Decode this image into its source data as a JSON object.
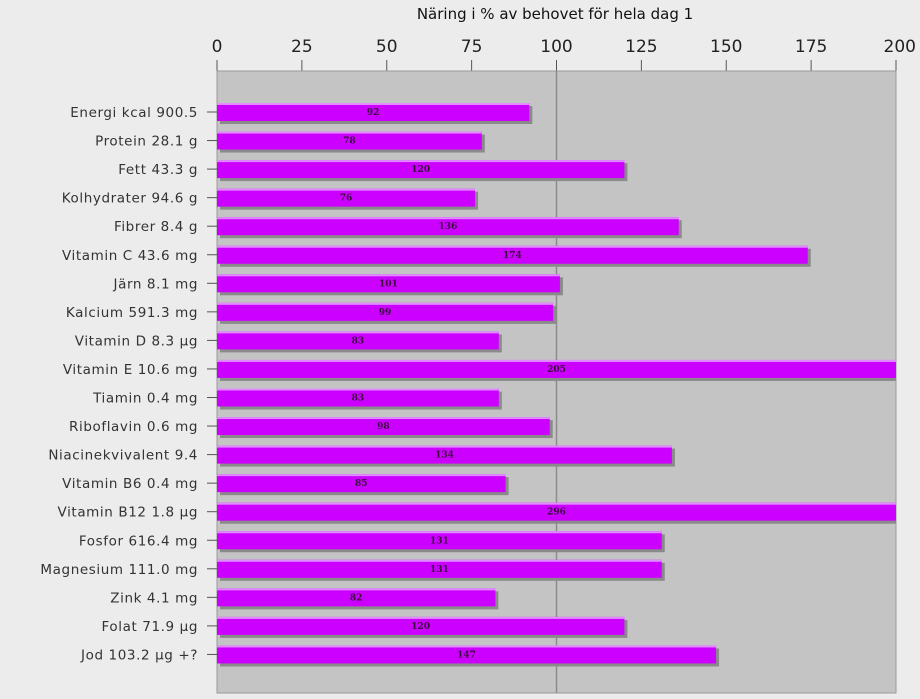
{
  "chart_data": {
    "type": "bar",
    "orientation": "horizontal",
    "title": "Näring i % av behovet för hela dag 1",
    "xlabel": "",
    "ylabel": "",
    "xlim": [
      0,
      200
    ],
    "ticks": [
      "0",
      "25",
      "50",
      "75",
      "100",
      "125",
      "150",
      "175",
      "200"
    ],
    "reference_line": 100,
    "grid": false,
    "colors": {
      "bar": "#cc00ff",
      "bar_highlight": "#e08cff",
      "shadow": "#8a8a8a",
      "plot_bg": "#c4c4c4",
      "reference": "#8c8c8c"
    },
    "categories": [
      "Energi kcal 900.5",
      "Protein 28.1 g",
      "Fett 43.3 g",
      "Kolhydrater 94.6 g",
      "Fibrer 8.4 g",
      "Vitamin C 43.6 mg",
      "Järn 8.1 mg",
      "Kalcium 591.3 mg",
      "Vitamin D 8.3 µg",
      "Vitamin E 10.6 mg",
      "Tiamin 0.4 mg",
      "Riboflavin 0.6 mg",
      "Niacinekvivalent 9.4",
      "Vitamin B6 0.4 mg",
      "Vitamin B12 1.8 µg",
      "Fosfor 616.4 mg",
      "Magnesium 111.0 mg",
      "Zink 4.1 mg",
      "Folat 71.9 µg",
      "Jod 103.2 µg +?"
    ],
    "values": [
      92,
      78,
      120,
      76,
      136,
      174,
      101,
      99,
      83,
      205,
      83,
      98,
      134,
      85,
      296,
      131,
      131,
      82,
      120,
      147
    ],
    "value_labels": [
      "92",
      "78",
      "120",
      "76",
      "136",
      "174",
      "101",
      "99",
      "83",
      "205",
      "83",
      "98",
      "134",
      "85",
      "296",
      "131",
      "131",
      "82",
      "120",
      "147"
    ]
  }
}
